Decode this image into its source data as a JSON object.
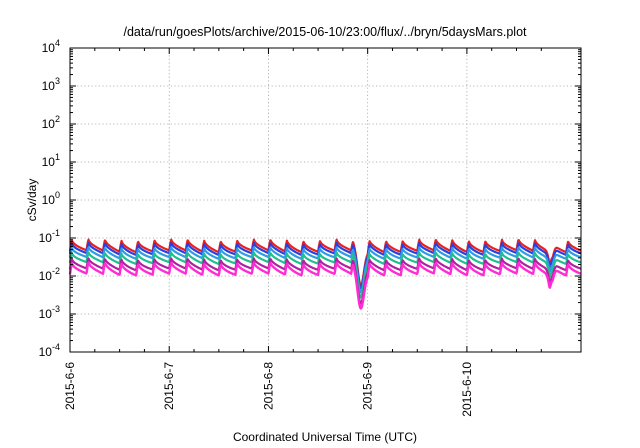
{
  "chart_data": {
    "type": "line",
    "title": "/data/run/goesPlots/archive/2015-06-10/23:00/flux/../bryn/5daysMars.plot",
    "xlabel": "Coordinated Universal Time (UTC)",
    "ylabel": "cSv/day",
    "yscale": "log",
    "ylim": [
      0.0001,
      10000
    ],
    "xlim_days": [
      0,
      5.15
    ],
    "x_ticks": [
      {
        "label": "2015-6-6",
        "day": 0
      },
      {
        "label": "2015-6-7",
        "day": 1
      },
      {
        "label": "2015-6-8",
        "day": 2
      },
      {
        "label": "2015-6-9",
        "day": 3
      },
      {
        "label": "2015-6-10",
        "day": 4
      }
    ],
    "y_ticks": [
      {
        "base": "10",
        "exp": "-4",
        "value": 0.0001
      },
      {
        "base": "10",
        "exp": "-3",
        "value": 0.001
      },
      {
        "base": "10",
        "exp": "-2",
        "value": 0.01
      },
      {
        "base": "10",
        "exp": "-1",
        "value": 0.1
      },
      {
        "base": "10",
        "exp": "0",
        "value": 1
      },
      {
        "base": "10",
        "exp": "1",
        "value": 10
      },
      {
        "base": "10",
        "exp": "2",
        "value": 100
      },
      {
        "base": "10",
        "exp": "3",
        "value": 1000
      },
      {
        "base": "10",
        "exp": "4",
        "value": 10000
      }
    ],
    "grid": true,
    "legend": "none",
    "pattern": {
      "period_days": 0.1667,
      "sharp_dip_day": 2.93,
      "sharp_dip_factor": 0.1,
      "minor_dip_day": 4.85
    },
    "series": [
      {
        "color": "#e8211f",
        "peak": 0.088,
        "trough": 0.045
      },
      {
        "color": "#2b3fe0",
        "peak": 0.072,
        "trough": 0.038
      },
      {
        "color": "#2f9be8",
        "peak": 0.055,
        "trough": 0.03
      },
      {
        "color": "#1fbf8f",
        "peak": 0.04,
        "trough": 0.022
      },
      {
        "color": "#b0209f",
        "peak": 0.028,
        "trough": 0.015
      },
      {
        "color": "#ff2bd6",
        "peak": 0.022,
        "trough": 0.011
      }
    ]
  }
}
